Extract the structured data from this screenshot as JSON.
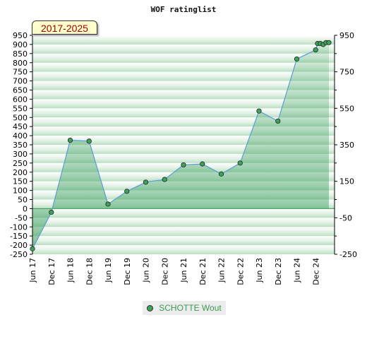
{
  "chart_data": {
    "type": "area",
    "title": "WOF ratinglist",
    "period": "2017-2025",
    "xlabel": "",
    "ylabel": "",
    "ylim": [
      -250,
      950
    ],
    "y_ticks_left": [
      -250,
      -200,
      -150,
      -100,
      -50,
      0,
      50,
      100,
      150,
      200,
      250,
      300,
      350,
      400,
      450,
      500,
      550,
      600,
      650,
      700,
      750,
      800,
      850,
      900,
      950
    ],
    "y_ticks_right": [
      -250,
      -50,
      150,
      350,
      550,
      750,
      950
    ],
    "x_ticks": [
      "Jun 17",
      "Dec 17",
      "Jun 18",
      "Dec 18",
      "Jun 19",
      "Dec 19",
      "Jun 20",
      "Dec 20",
      "Jun 21",
      "Dec 21",
      "Jun 22",
      "Dec 22",
      "Jun 23",
      "Dec 23",
      "Jun 24",
      "Dec 24"
    ],
    "grid": false,
    "legend_position": "bottom-center",
    "series": [
      {
        "name": "SCHOTTE Wout",
        "color": "#3da35a",
        "x": [
          0,
          1,
          2,
          3,
          4,
          5,
          6,
          7,
          8,
          9,
          10,
          11,
          12,
          13,
          14,
          15.0,
          15.1,
          15.25,
          15.4,
          15.55,
          15.7
        ],
        "values": [
          -220,
          -20,
          375,
          370,
          25,
          95,
          145,
          160,
          240,
          245,
          190,
          250,
          535,
          480,
          820,
          870,
          905,
          905,
          900,
          910,
          910
        ]
      }
    ]
  }
}
